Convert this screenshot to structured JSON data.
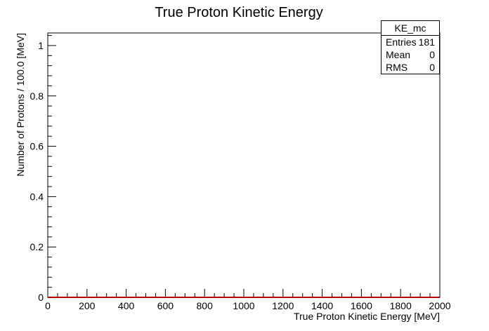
{
  "chart_data": {
    "type": "histogram",
    "title": "True Proton Kinetic Energy",
    "xlabel": "True Proton Kinetic Energy [MeV]",
    "ylabel": "Number of Protons / 100.0 [MeV]",
    "xlim": [
      0,
      2000
    ],
    "ylim": [
      0,
      1.05
    ],
    "x_ticks": [
      0,
      200,
      400,
      600,
      800,
      1000,
      1200,
      1400,
      1600,
      1800,
      2000
    ],
    "y_ticks": [
      0,
      0.2,
      0.4,
      0.6,
      0.8,
      1
    ],
    "bin_width": 100,
    "bins": [
      0,
      100,
      200,
      300,
      400,
      500,
      600,
      700,
      800,
      900,
      1000,
      1100,
      1200,
      1300,
      1400,
      1500,
      1600,
      1700,
      1800,
      1900,
      2000
    ],
    "values": [
      0,
      0,
      0,
      0,
      0,
      0,
      0,
      0,
      0,
      0,
      0,
      0,
      0,
      0,
      0,
      0,
      0,
      0,
      0,
      0
    ],
    "line_color": "#b30000",
    "grid": false
  },
  "stats": {
    "name": "KE_mc",
    "entries_label": "Entries",
    "entries_value": "181",
    "mean_label": "Mean",
    "mean_value": "0",
    "rms_label": "RMS",
    "rms_value": "0"
  }
}
